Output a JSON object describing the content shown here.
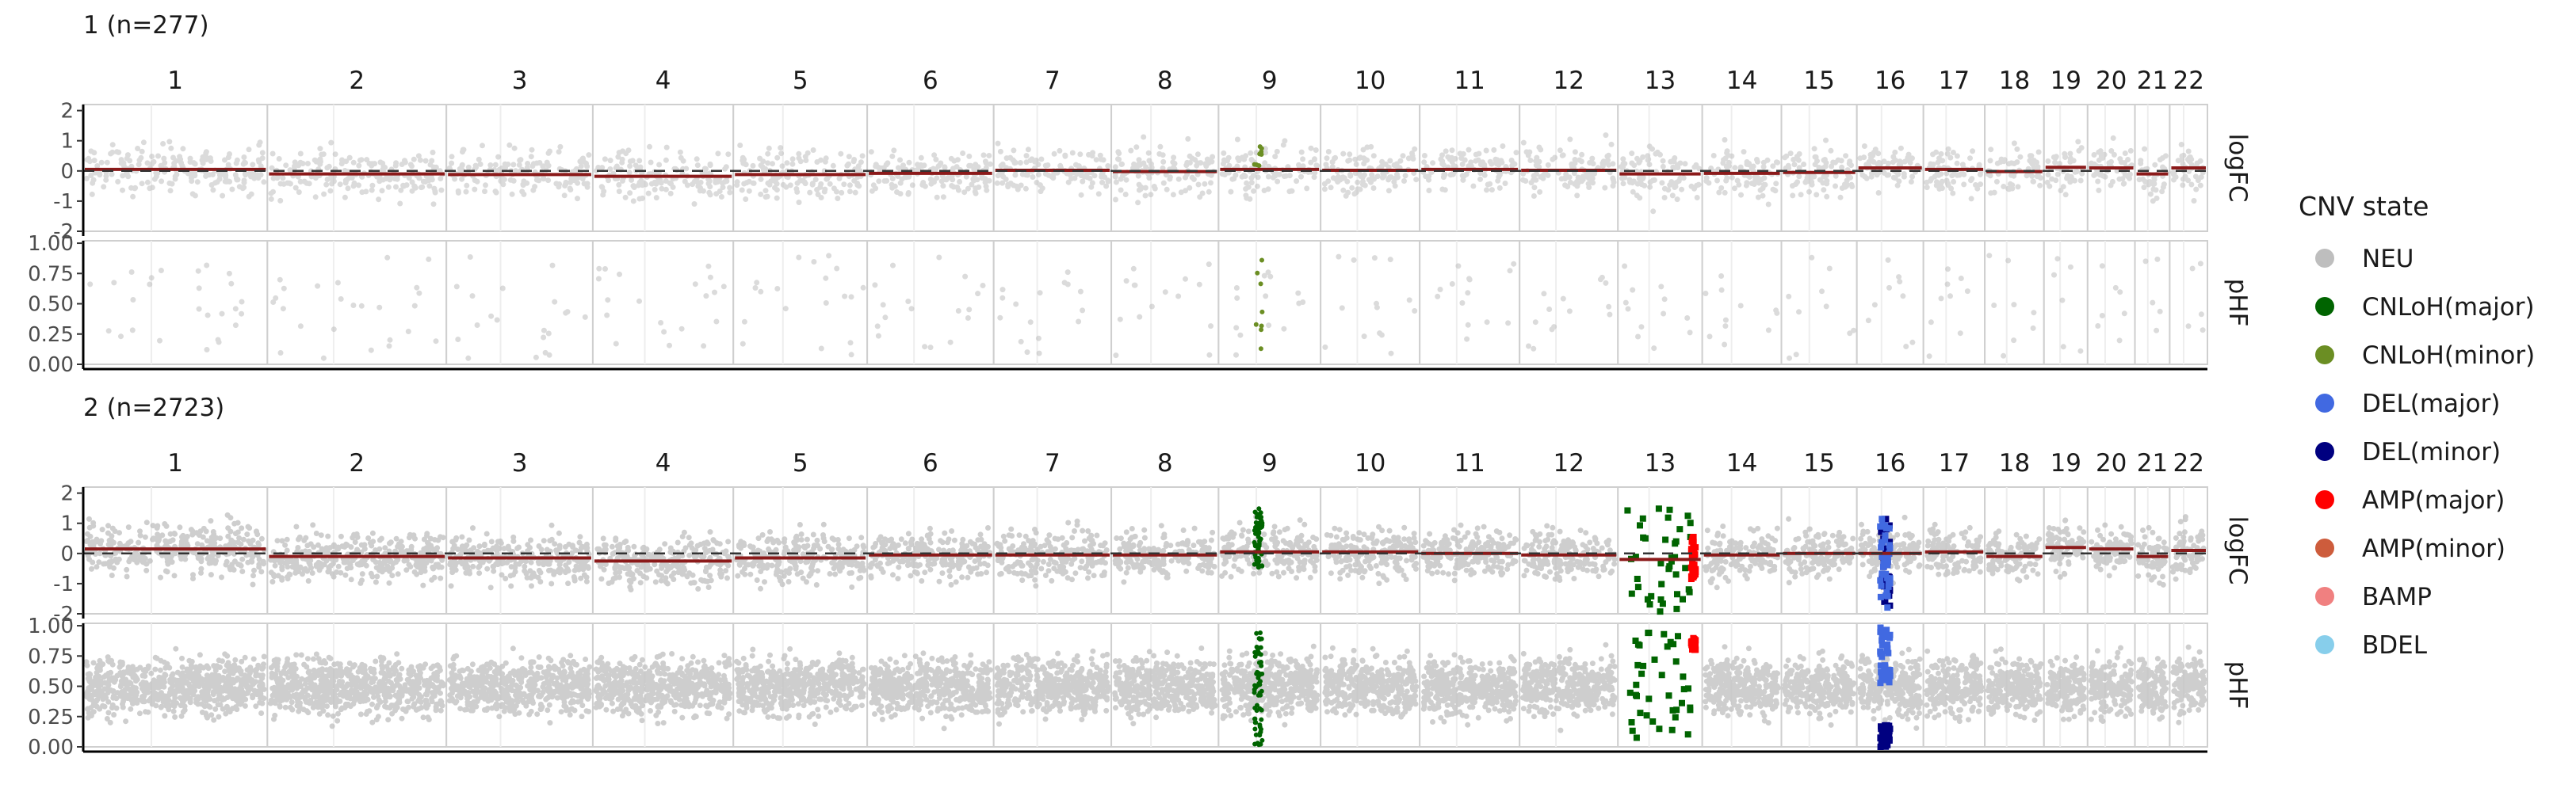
{
  "chart_data": {
    "type": "scatter",
    "chromosomes": [
      "1",
      "2",
      "3",
      "4",
      "5",
      "6",
      "7",
      "8",
      "9",
      "10",
      "11",
      "12",
      "13",
      "14",
      "15",
      "16",
      "17",
      "18",
      "19",
      "20",
      "21",
      "22"
    ],
    "chrom_rel_len": [
      249,
      242,
      198,
      190,
      181,
      171,
      159,
      145,
      138,
      134,
      135,
      133,
      114,
      107,
      102,
      90,
      83,
      80,
      59,
      64,
      47,
      51
    ],
    "tracks": [
      {
        "name": "logFC",
        "ylim": [
          -2,
          2.2
        ],
        "ticks": [
          "2",
          "1",
          "0",
          "-1",
          "-2"
        ],
        "tick_values": [
          2,
          1,
          0,
          -1,
          -2
        ]
      },
      {
        "name": "pHF",
        "ylim": [
          0,
          1.02
        ],
        "ticks": [
          "1.00",
          "0.75",
          "0.50",
          "0.25",
          "0.00"
        ],
        "tick_values": [
          1,
          0.75,
          0.5,
          0.25,
          0
        ]
      }
    ],
    "groups": [
      {
        "title": "1 (n=277)",
        "segment_logFC": [
          0.05,
          -0.1,
          -0.12,
          -0.18,
          -0.12,
          -0.08,
          0.02,
          -0.02,
          0.05,
          0.02,
          0.05,
          0.02,
          -0.1,
          -0.08,
          -0.05,
          0.1,
          0.05,
          -0.02,
          0.12,
          0.1,
          -0.1,
          0.1
        ],
        "highlights": [
          {
            "chrom": "9",
            "state": "CNLoH(minor)",
            "logFC_range": [
              0,
              1
            ],
            "pHF_values": [
              0.3
            ]
          }
        ]
      },
      {
        "title": "2 (n=2723)",
        "segment_logFC": [
          0.15,
          -0.1,
          -0.15,
          -0.25,
          -0.15,
          -0.05,
          -0.05,
          -0.05,
          0.05,
          0.05,
          0.0,
          -0.05,
          -0.2,
          -0.05,
          0.0,
          0.0,
          0.05,
          -0.1,
          0.2,
          0.15,
          -0.1,
          0.1
        ],
        "highlights": [
          {
            "chrom": "9",
            "state": "CNLoH(major)",
            "logFC_range": [
              -0.5,
              1.5
            ],
            "pHF_values": "0.0-0.9"
          },
          {
            "chrom": "13",
            "state": "CNLoH(major)",
            "logFC_range": [
              -2,
              2
            ],
            "pHF_values": "0.0-1.0"
          },
          {
            "chrom": "13",
            "state": "AMP(major)",
            "logFC_range": [
              -0.9,
              0.6
            ],
            "pHF_values": "0.8-0.9"
          },
          {
            "chrom": "16",
            "state": "DEL(minor)",
            "logFC_range": [
              -1.8,
              1.2
            ],
            "pHF_values": "0.0-0.2"
          },
          {
            "chrom": "16",
            "state": "DEL(major)",
            "logFC_range": [
              -1.8,
              1.2
            ],
            "pHF_values": "0.5-1.0"
          }
        ]
      }
    ],
    "legend": {
      "title": "CNV state",
      "entries": [
        {
          "label": "NEU",
          "color": "#bebebe"
        },
        {
          "label": "CNLoH(major)",
          "color": "#006400"
        },
        {
          "label": "CNLoH(minor)",
          "color": "#6b8e23"
        },
        {
          "label": "DEL(major)",
          "color": "#4169e1"
        },
        {
          "label": "DEL(minor)",
          "color": "#000080"
        },
        {
          "label": "AMP(major)",
          "color": "#ff0000"
        },
        {
          "label": "AMP(minor)",
          "color": "#cd5c3c"
        },
        {
          "label": "BAMP",
          "color": "#f08080"
        },
        {
          "label": "BDEL",
          "color": "#87ceeb"
        }
      ]
    }
  }
}
